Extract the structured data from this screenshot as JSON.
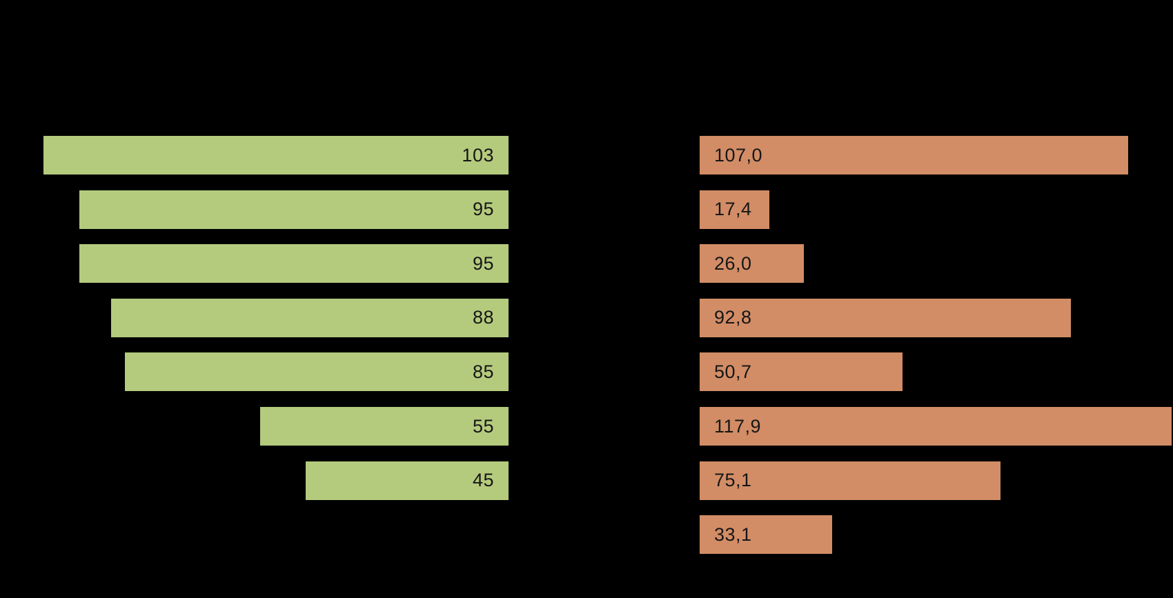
{
  "canvas": {
    "background_color": "#000000",
    "label_color": "#161616"
  },
  "chart_data": {
    "type": "bar",
    "orientation": "horizontal",
    "row_count": 8,
    "grid": "off",
    "axis_labels_visible": false,
    "title_visible": false,
    "series": [
      {
        "name": "left-green-series",
        "bar_color": "#b4cb7d",
        "bar_alignment": "right",
        "values": [
          103,
          95,
          95,
          88,
          85,
          55,
          45,
          null
        ],
        "value_labels": [
          "103",
          "95",
          "95",
          "88",
          "85",
          "55",
          "45",
          null
        ],
        "decimal_separator": "none",
        "xlim": [
          0,
          113
        ]
      },
      {
        "name": "right-orange-series",
        "bar_color": "#d28d66",
        "bar_alignment": "left",
        "values": [
          107.0,
          17.4,
          26.0,
          92.8,
          50.7,
          117.9,
          75.1,
          33.1
        ],
        "value_labels": [
          "107,0",
          "17,4",
          "26,0",
          "92,8",
          "50,7",
          "117,9",
          "75,1",
          "33,1"
        ],
        "decimal_separator": "comma",
        "xlim": [
          0,
          118.3
        ]
      }
    ]
  }
}
